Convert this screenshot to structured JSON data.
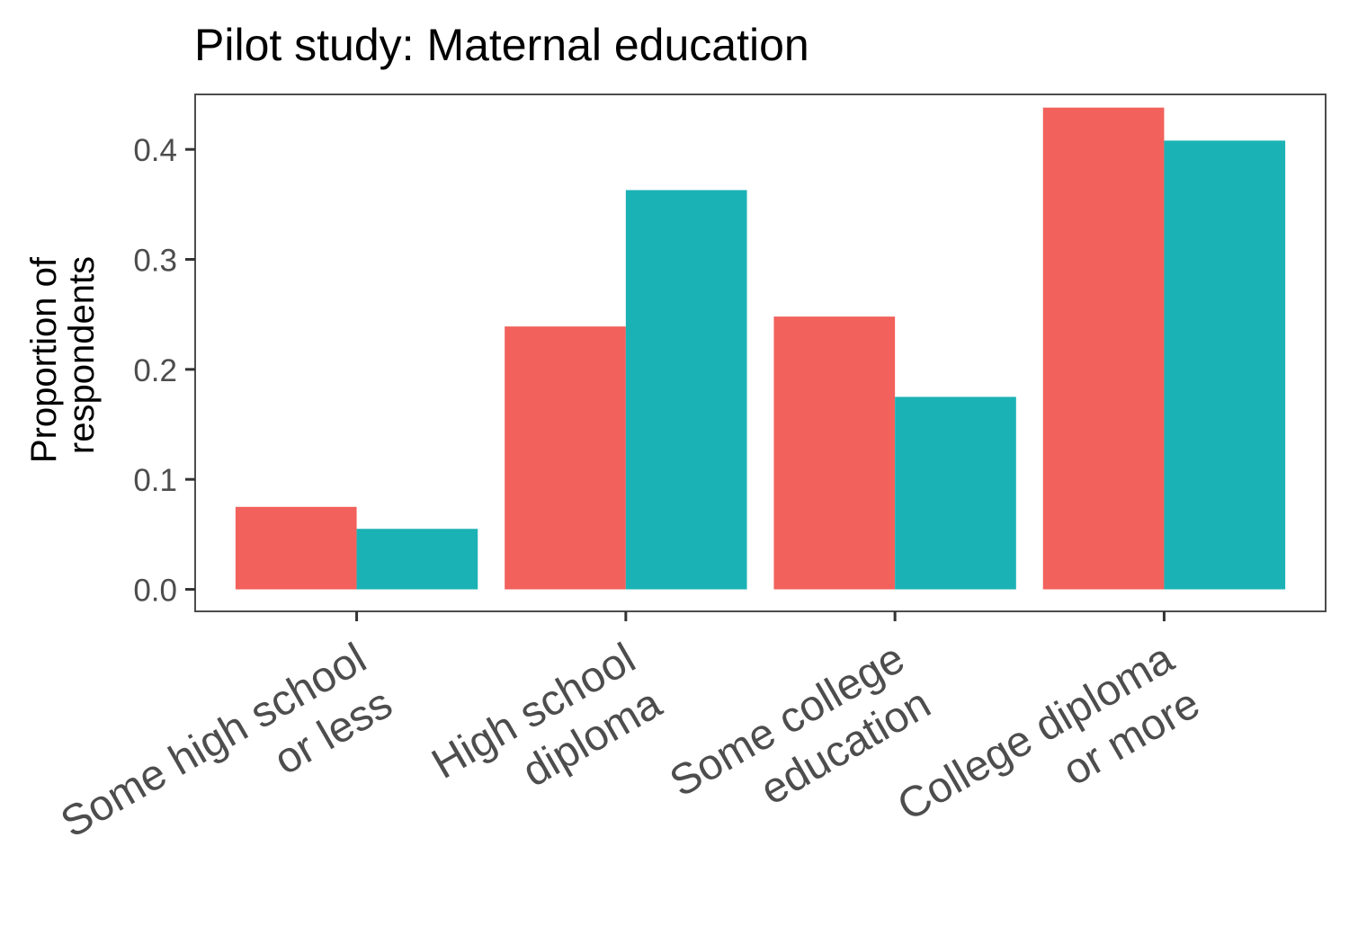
{
  "chart_data": {
    "type": "bar",
    "title": "Pilot study: Maternal education",
    "xlabel": "",
    "ylabel_lines": [
      "Proportion of",
      "respondents"
    ],
    "categories": [
      [
        "Some high school",
        "or less"
      ],
      [
        "High school",
        "diploma"
      ],
      [
        "Some college",
        "education"
      ],
      [
        "College diploma",
        "or more"
      ]
    ],
    "series": [
      {
        "color": "#F2615C",
        "values": [
          0.075,
          0.239,
          0.248,
          0.438
        ]
      },
      {
        "color": "#1BB2B5",
        "values": [
          0.055,
          0.363,
          0.175,
          0.408
        ]
      }
    ],
    "ylim": [
      -0.02,
      0.45
    ],
    "yticks": [
      0.0,
      0.1,
      0.2,
      0.3,
      0.4
    ],
    "ytick_labels": [
      "0.0",
      "0.1",
      "0.2",
      "0.3",
      "0.4"
    ],
    "grid": false,
    "legend": "none"
  }
}
